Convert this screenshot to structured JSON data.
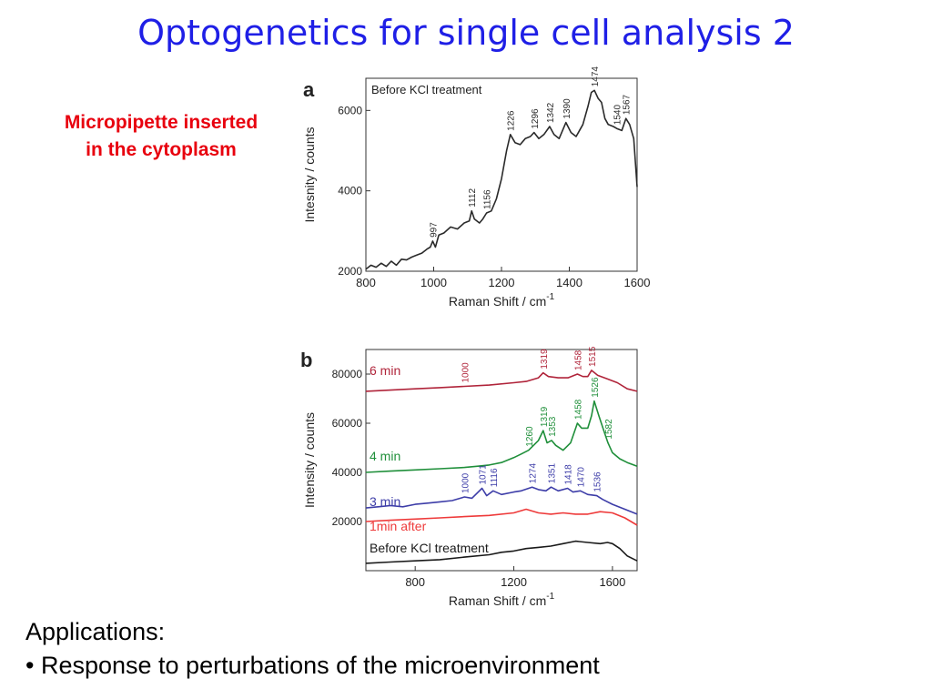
{
  "slide": {
    "title": "Optogenetics for single cell analysis 2",
    "note_line1": "Micropipette inserted",
    "note_line2": "in the cytoplasm",
    "applications_heading": "Applications:",
    "applications_bullet": "• Response to perturbations of the microenvironment"
  },
  "chart_data": [
    {
      "type": "line",
      "panel_label": "a",
      "legend_text": "Before KCl treatment",
      "xlabel": "Raman Shift / cm",
      "xlabel_sup": "-1",
      "ylabel": "Intesnity / counts",
      "xlim": [
        800,
        1600
      ],
      "ylim": [
        2000,
        6800
      ],
      "xticks": [
        800,
        1000,
        1200,
        1400,
        1600
      ],
      "yticks": [
        2000,
        4000,
        6000
      ],
      "color": "#2a2a2a",
      "series": [
        {
          "x": [
            800,
            815,
            830,
            845,
            860,
            875,
            890,
            905,
            920,
            935,
            950,
            965,
            980,
            990,
            997,
            1005,
            1015,
            1030,
            1050,
            1070,
            1090,
            1105,
            1112,
            1120,
            1135,
            1145,
            1156,
            1170,
            1185,
            1200,
            1215,
            1226,
            1240,
            1255,
            1270,
            1285,
            1296,
            1310,
            1325,
            1342,
            1355,
            1370,
            1390,
            1405,
            1420,
            1440,
            1455,
            1465,
            1474,
            1485,
            1495,
            1505,
            1515,
            1530,
            1540,
            1555,
            1567,
            1578,
            1590,
            1600
          ],
          "y": [
            2050,
            2150,
            2100,
            2200,
            2120,
            2250,
            2150,
            2300,
            2280,
            2350,
            2400,
            2450,
            2550,
            2600,
            2750,
            2600,
            2900,
            2950,
            3100,
            3050,
            3200,
            3250,
            3500,
            3300,
            3200,
            3300,
            3450,
            3500,
            3800,
            4300,
            5000,
            5400,
            5200,
            5150,
            5300,
            5350,
            5450,
            5300,
            5400,
            5600,
            5400,
            5300,
            5700,
            5450,
            5350,
            5650,
            6100,
            6450,
            6500,
            6300,
            6200,
            5800,
            5650,
            5600,
            5550,
            5500,
            5800,
            5650,
            5300,
            4100
          ]
        }
      ],
      "peak_labels": [
        {
          "label": "997",
          "x": 997,
          "y": 2750
        },
        {
          "label": "1112",
          "x": 1112,
          "y": 3500
        },
        {
          "label": "1156",
          "x": 1156,
          "y": 3450
        },
        {
          "label": "1226",
          "x": 1226,
          "y": 5400
        },
        {
          "label": "1296",
          "x": 1296,
          "y": 5450
        },
        {
          "label": "1342",
          "x": 1342,
          "y": 5600
        },
        {
          "label": "1390",
          "x": 1390,
          "y": 5700
        },
        {
          "label": "1474",
          "x": 1474,
          "y": 6500
        },
        {
          "label": "1540",
          "x": 1540,
          "y": 5550
        },
        {
          "label": "1567",
          "x": 1567,
          "y": 5800
        }
      ]
    },
    {
      "type": "line",
      "panel_label": "b",
      "xlabel": "Raman Shift / cm",
      "xlabel_sup": "-1",
      "ylabel": "Intensity / counts",
      "xlim": [
        600,
        1700
      ],
      "ylim": [
        0,
        90000
      ],
      "xticks": [
        800,
        1200,
        1600
      ],
      "yticks": [
        20000,
        40000,
        60000,
        80000
      ],
      "series": [
        {
          "name": "6 min",
          "color": "#b0243a",
          "x": [
            600,
            700,
            800,
            900,
            1000,
            1100,
            1200,
            1250,
            1300,
            1319,
            1340,
            1380,
            1420,
            1458,
            1480,
            1500,
            1515,
            1540,
            1580,
            1620,
            1660,
            1700
          ],
          "y": [
            73000,
            73500,
            74000,
            74500,
            75000,
            75500,
            76500,
            77000,
            78500,
            80500,
            79000,
            78500,
            78500,
            80000,
            79000,
            79000,
            81500,
            79500,
            78000,
            76500,
            74000,
            73000
          ]
        },
        {
          "name": "4 min",
          "color": "#1f8f3a",
          "x": [
            600,
            700,
            800,
            900,
            1000,
            1050,
            1100,
            1150,
            1200,
            1230,
            1260,
            1280,
            1300,
            1319,
            1335,
            1353,
            1370,
            1400,
            1430,
            1458,
            1475,
            1500,
            1515,
            1526,
            1545,
            1565,
            1582,
            1600,
            1630,
            1660,
            1700
          ],
          "y": [
            40000,
            40500,
            41000,
            41500,
            42000,
            42500,
            43000,
            44000,
            46000,
            47500,
            49000,
            51000,
            53000,
            57000,
            52000,
            53000,
            51000,
            49000,
            52000,
            60000,
            58000,
            58000,
            63000,
            69000,
            63000,
            57000,
            52000,
            48000,
            45500,
            44000,
            42500
          ]
        },
        {
          "name": "3 min",
          "color": "#3d3da8",
          "x": [
            600,
            650,
            700,
            750,
            800,
            850,
            900,
            950,
            1000,
            1030,
            1071,
            1090,
            1116,
            1150,
            1200,
            1230,
            1274,
            1300,
            1330,
            1351,
            1380,
            1418,
            1440,
            1470,
            1500,
            1536,
            1560,
            1600,
            1650,
            1700
          ],
          "y": [
            25500,
            26000,
            26500,
            26000,
            27000,
            27500,
            28000,
            28500,
            30000,
            29500,
            33500,
            30500,
            32500,
            31000,
            32000,
            32500,
            34000,
            33000,
            32500,
            34000,
            32500,
            33500,
            32000,
            32500,
            31000,
            30500,
            29000,
            27000,
            25000,
            23000
          ]
        },
        {
          "name": "1min after",
          "color": "#ee3a3a",
          "x": [
            600,
            700,
            800,
            900,
            1000,
            1100,
            1200,
            1250,
            1300,
            1350,
            1400,
            1450,
            1500,
            1550,
            1600,
            1650,
            1700
          ],
          "y": [
            20000,
            20500,
            21000,
            21500,
            22000,
            22500,
            23500,
            25000,
            23500,
            23000,
            23500,
            23000,
            23000,
            24000,
            23500,
            21500,
            18500
          ]
        },
        {
          "name": "Before KCl treatment",
          "color": "#1a1a1a",
          "x": [
            600,
            700,
            800,
            900,
            1000,
            1100,
            1150,
            1200,
            1250,
            1300,
            1350,
            1400,
            1450,
            1500,
            1550,
            1580,
            1600,
            1630,
            1660,
            1700
          ],
          "y": [
            3000,
            3500,
            4000,
            4500,
            5500,
            6500,
            7500,
            8000,
            9000,
            9500,
            10000,
            11000,
            12000,
            11500,
            11000,
            11500,
            11000,
            9000,
            6000,
            4000
          ]
        }
      ],
      "peak_labels": [
        {
          "label": "1000",
          "x": 1000,
          "y": 75000,
          "series": 0
        },
        {
          "label": "1319",
          "x": 1319,
          "y": 80500,
          "series": 0
        },
        {
          "label": "1458",
          "x": 1458,
          "y": 80000,
          "series": 0
        },
        {
          "label": "1515",
          "x": 1515,
          "y": 81500,
          "series": 0
        },
        {
          "label": "1260",
          "x": 1260,
          "y": 49000,
          "series": 1
        },
        {
          "label": "1319",
          "x": 1319,
          "y": 57000,
          "series": 1
        },
        {
          "label": "1353",
          "x": 1353,
          "y": 53000,
          "series": 1
        },
        {
          "label": "1458",
          "x": 1458,
          "y": 60000,
          "series": 1
        },
        {
          "label": "1526",
          "x": 1526,
          "y": 69000,
          "series": 1
        },
        {
          "label": "1582",
          "x": 1582,
          "y": 52000,
          "series": 1
        },
        {
          "label": "1000",
          "x": 1000,
          "y": 30000,
          "series": 2
        },
        {
          "label": "1071",
          "x": 1071,
          "y": 33500,
          "series": 2
        },
        {
          "label": "1116",
          "x": 1116,
          "y": 32500,
          "series": 2
        },
        {
          "label": "1274",
          "x": 1274,
          "y": 34000,
          "series": 2
        },
        {
          "label": "1351",
          "x": 1351,
          "y": 34000,
          "series": 2
        },
        {
          "label": "1418",
          "x": 1418,
          "y": 33500,
          "series": 2
        },
        {
          "label": "1470",
          "x": 1470,
          "y": 32500,
          "series": 2
        },
        {
          "label": "1536",
          "x": 1536,
          "y": 30500,
          "series": 2
        }
      ]
    }
  ]
}
